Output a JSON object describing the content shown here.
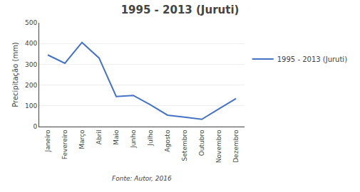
{
  "chart_data": {
    "type": "line",
    "title": "1995 - 2013 (Juruti)",
    "ylabel": "Precipitação (mm)",
    "categories": [
      "Janeiro",
      "Fevereiro",
      "Março",
      "Abril",
      "Maio",
      "Junho",
      "Julho",
      "Agosto",
      "Setembro",
      "Outubro",
      "Novembro",
      "Dezembro"
    ],
    "series": [
      {
        "name": "1995 - 2013 (Juruti)",
        "color": "#4472C4",
        "values": [
          345,
          305,
          405,
          330,
          145,
          150,
          105,
          55,
          45,
          35,
          85,
          135
        ]
      }
    ],
    "ylim": [
      0,
      500
    ],
    "yticks": [
      0,
      100,
      200,
      300,
      400,
      500
    ],
    "grid": true,
    "legend": "right",
    "annotations": [
      "Fonte: Autor, 2016"
    ]
  }
}
